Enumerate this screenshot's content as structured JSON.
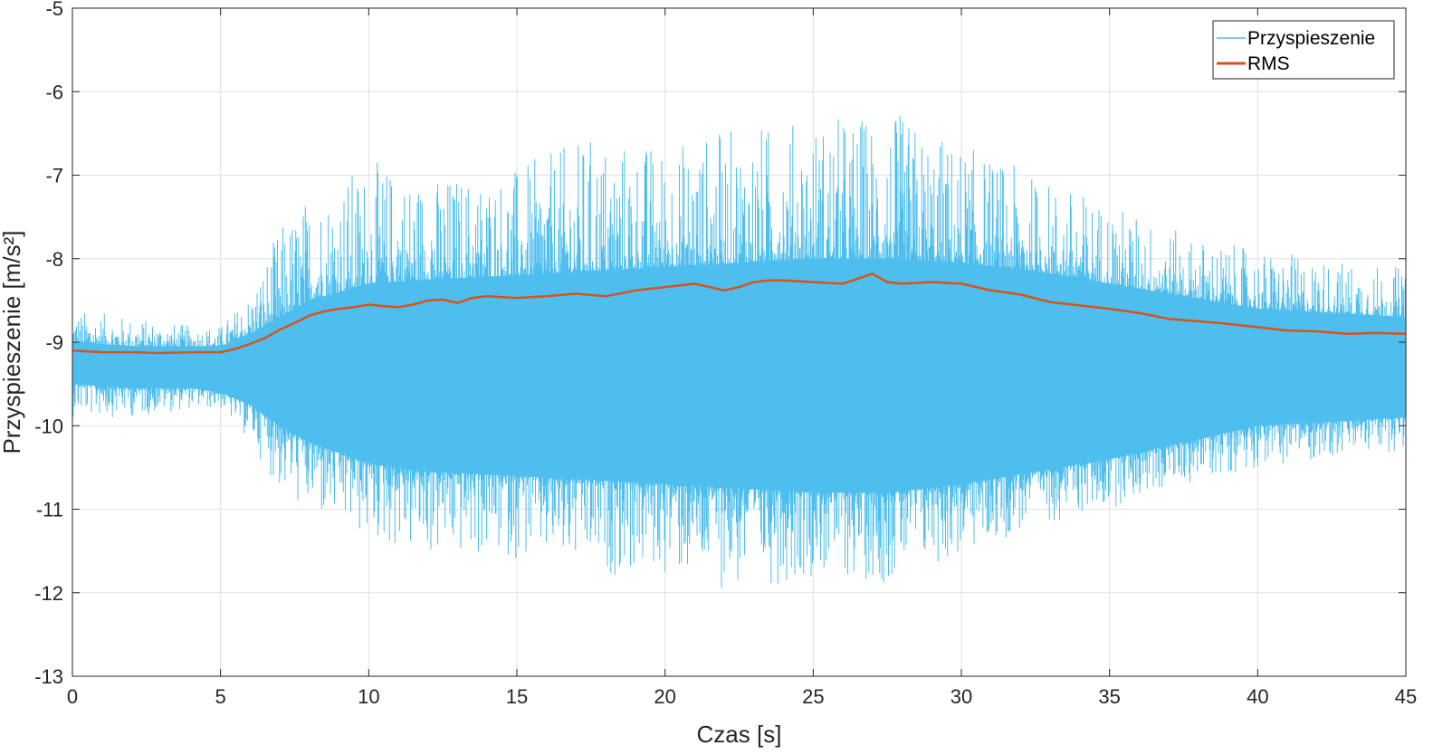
{
  "chart_data": {
    "type": "line",
    "xlabel": "Czas [s]",
    "ylabel": "Przyspieszenie [m/s²]",
    "xlim": [
      0,
      45
    ],
    "ylim": [
      -13,
      -5
    ],
    "xticks": [
      0,
      5,
      10,
      15,
      20,
      25,
      30,
      35,
      40,
      45
    ],
    "yticks": [
      -5,
      -6,
      -7,
      -8,
      -9,
      -10,
      -11,
      -12,
      -13
    ],
    "grid": true,
    "legend_position": "top-right",
    "colors": {
      "signal": "#4DBEEE",
      "rms": "#D95319",
      "grid": "#e0e0e0",
      "axis": "#262626"
    },
    "series": [
      {
        "name": "Przyspieszenie",
        "kind": "signal-envelope",
        "envelope_t": [
          0,
          2,
          4,
          5,
          6,
          7,
          8,
          10,
          12,
          15,
          17.5,
          20,
          22.5,
          25,
          27.5,
          30,
          32.5,
          35,
          37.5,
          40,
          42.5,
          45
        ],
        "envelope_max": [
          -8.6,
          -8.7,
          -8.8,
          -8.8,
          -8.4,
          -7.6,
          -7.2,
          -6.8,
          -7.0,
          -6.9,
          -6.5,
          -6.6,
          -6.4,
          -6.3,
          -6.2,
          -6.6,
          -7.0,
          -7.3,
          -7.7,
          -7.9,
          -8.0,
          -8.1
        ],
        "envelope_min": [
          -9.9,
          -9.9,
          -9.8,
          -9.8,
          -10.2,
          -10.8,
          -11.1,
          -11.4,
          -11.6,
          -11.6,
          -11.8,
          -11.8,
          -12.0,
          -11.8,
          -11.9,
          -11.6,
          -11.2,
          -11.0,
          -10.7,
          -10.5,
          -10.4,
          -10.3
        ],
        "core_max": [
          -9.0,
          -9.05,
          -9.05,
          -9.05,
          -8.9,
          -8.7,
          -8.5,
          -8.3,
          -8.25,
          -8.2,
          -8.15,
          -8.1,
          -8.05,
          -8.0,
          -8.0,
          -8.05,
          -8.15,
          -8.3,
          -8.45,
          -8.6,
          -8.65,
          -8.7
        ],
        "core_min": [
          -9.5,
          -9.55,
          -9.55,
          -9.6,
          -9.75,
          -10.0,
          -10.2,
          -10.45,
          -10.55,
          -10.6,
          -10.65,
          -10.7,
          -10.75,
          -10.8,
          -10.8,
          -10.7,
          -10.55,
          -10.4,
          -10.2,
          -10.0,
          -9.95,
          -9.9
        ]
      },
      {
        "name": "RMS",
        "kind": "line",
        "x": [
          0,
          1,
          2,
          3,
          4,
          5,
          5.5,
          6,
          6.5,
          7,
          7.5,
          8,
          8.5,
          9,
          9.5,
          10,
          10.5,
          11,
          11.5,
          12,
          12.5,
          13,
          13.5,
          14,
          15,
          16,
          17,
          18,
          19,
          20,
          21,
          22,
          22.5,
          23,
          23.5,
          24,
          25,
          26,
          26.5,
          27,
          27.5,
          28,
          29,
          30,
          31,
          32,
          33,
          34,
          35,
          36,
          37,
          38,
          39,
          40,
          41,
          42,
          43,
          44,
          45
        ],
        "y": [
          -9.1,
          -9.12,
          -9.12,
          -9.13,
          -9.12,
          -9.12,
          -9.08,
          -9.02,
          -8.95,
          -8.85,
          -8.77,
          -8.68,
          -8.63,
          -8.6,
          -8.58,
          -8.55,
          -8.57,
          -8.58,
          -8.55,
          -8.5,
          -8.49,
          -8.53,
          -8.47,
          -8.45,
          -8.47,
          -8.45,
          -8.42,
          -8.45,
          -8.38,
          -8.34,
          -8.3,
          -8.38,
          -8.34,
          -8.28,
          -8.26,
          -8.26,
          -8.28,
          -8.3,
          -8.24,
          -8.18,
          -8.28,
          -8.3,
          -8.28,
          -8.3,
          -8.38,
          -8.43,
          -8.52,
          -8.56,
          -8.6,
          -8.65,
          -8.72,
          -8.75,
          -8.78,
          -8.82,
          -8.86,
          -8.87,
          -8.9,
          -8.89,
          -8.9
        ]
      }
    ]
  }
}
